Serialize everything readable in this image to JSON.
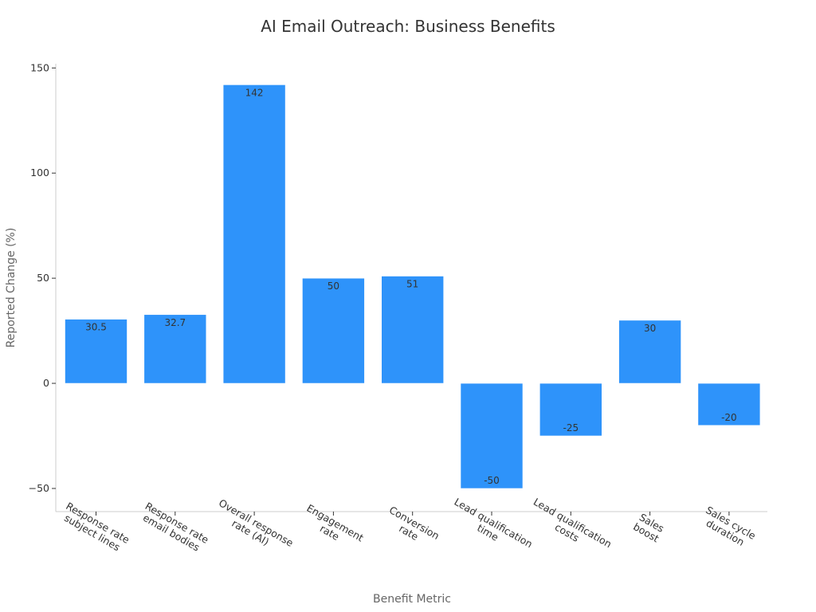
{
  "chart_data": {
    "type": "bar",
    "title": "AI Email Outreach: Business Benefits",
    "xlabel": "Benefit Metric",
    "ylabel": "Reported Change (%)",
    "ylim": [
      -61,
      152
    ],
    "yticks": [
      {
        "value": 150,
        "label": "150"
      },
      {
        "value": 100,
        "label": "100"
      },
      {
        "value": 50,
        "label": "50"
      },
      {
        "value": 0,
        "label": "0"
      },
      {
        "value": -50,
        "label": "−50"
      }
    ],
    "categories": [
      [
        "Response rate",
        "subject lines"
      ],
      [
        "Response rate",
        "email bodies"
      ],
      [
        "Overall response",
        "rate (AI)"
      ],
      [
        "Engagement",
        "rate"
      ],
      [
        "Conversion",
        "rate"
      ],
      [
        "Lead qualification",
        "time"
      ],
      [
        "Lead qualification",
        "costs"
      ],
      [
        "Sales",
        "boost"
      ],
      [
        "Sales cycle",
        "duration"
      ]
    ],
    "values": [
      30.5,
      32.7,
      142,
      50,
      51,
      -50,
      -25,
      30,
      -20
    ],
    "value_labels": [
      "30.5",
      "32.7",
      "142",
      "50",
      "51",
      "-50",
      "-25",
      "30",
      "-20"
    ],
    "bar_color": "#2e93fa",
    "grid": false,
    "legend": "none"
  }
}
